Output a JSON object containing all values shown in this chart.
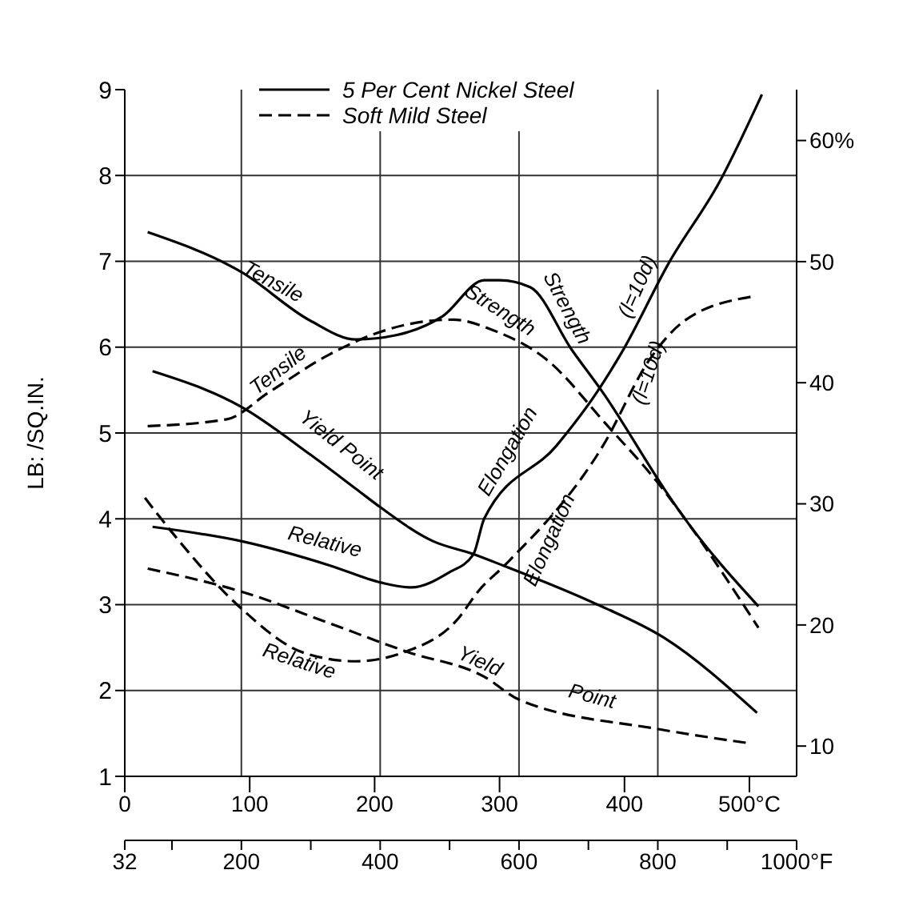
{
  "chart_data": {
    "type": "line",
    "ylabel": "LB: /SQ.IN.",
    "xlim": [
      32,
      1000
    ],
    "xticks": [
      32,
      {
        "value": 100,
        "label": null
      },
      200,
      {
        "value": 300,
        "label": null
      },
      400,
      {
        "value": 500,
        "label": null
      },
      600,
      {
        "value": 700,
        "label": null
      },
      800,
      {
        "value": 900,
        "label": null
      },
      {
        "value": 1000,
        "label": "1000°F"
      }
    ],
    "x2lim": [
      0,
      537.8
    ],
    "x2ticks": [
      0,
      100,
      200,
      300,
      400,
      {
        "value": 500,
        "label": "500°C"
      }
    ],
    "ylim": [
      1,
      9
    ],
    "yticks": [
      1,
      2,
      3,
      4,
      5,
      6,
      7,
      8,
      9
    ],
    "y2lim": [
      7.5,
      64.2
    ],
    "y2ticks": [
      10,
      20,
      30,
      40,
      50,
      {
        "value": 60,
        "label": "60%"
      }
    ],
    "grid": true,
    "legend": "top",
    "marker": "none",
    "series": [
      {
        "name": "5 Per Cent Nickel Steel",
        "color": "#000000",
        "line_style": "solid",
        "x": [
          65,
          201,
          299,
          365,
          423,
          490,
          550,
          572,
          616,
          676,
          721,
          810,
          832,
          945
        ],
        "values": [
          7.34,
          6.87,
          6.31,
          6.09,
          6.14,
          6.36,
          6.78,
          6.78,
          6.7,
          5.97,
          5.47,
          4.34,
          4.08,
          2.98
        ]
      },
      {
        "color": "#000000",
        "line_style": "solid",
        "x": [
          72,
          201,
          299,
          365,
          401,
          476,
          534,
          579,
          705,
          810,
          943
        ],
        "values": [
          5.72,
          5.3,
          4.75,
          4.35,
          4.13,
          3.74,
          3.59,
          3.45,
          3.03,
          2.61,
          1.74
        ]
      },
      {
        "color": "#000000",
        "line_style": "solid",
        "axis": "y2",
        "x": [
          72,
          201,
          328,
          401,
          445,
          498,
          534,
          550,
          654,
          712,
          750,
          816,
          890,
          950
        ],
        "values": [
          28.1,
          26.9,
          24.9,
          23.5,
          23.1,
          24.3,
          25.8,
          28.8,
          34.8,
          39.2,
          42.7,
          49.9,
          56.7,
          63.8
        ]
      },
      {
        "name": "Soft Mild Steel",
        "color": "#000000",
        "line_style": "dashed",
        "x": [
          65,
          179,
          239,
          328,
          401,
          476,
          505,
          565,
          639,
          728,
          801,
          832,
          945
        ],
        "values": [
          5.08,
          5.16,
          5.47,
          5.92,
          6.18,
          6.31,
          6.32,
          6.19,
          5.86,
          5.08,
          4.41,
          4.08,
          2.73
        ]
      },
      {
        "color": "#000000",
        "line_style": "dashed",
        "x": [
          65,
          201,
          328,
          439,
          550,
          601,
          801,
          928
        ],
        "values": [
          3.42,
          3.15,
          2.78,
          2.45,
          2.16,
          1.89,
          1.55,
          1.39
        ]
      },
      {
        "color": "#000000",
        "line_style": "dashed",
        "axis": "y2",
        "x": [
          61,
          105,
          201,
          290,
          365,
          432,
          512,
          543,
          579,
          721,
          788,
          838,
          934
        ],
        "values": [
          30.5,
          27.3,
          21.3,
          17.7,
          17.0,
          17.7,
          20.5,
          22.9,
          24.9,
          34.8,
          41.9,
          45.1,
          47.1
        ]
      }
    ],
    "annotations": [
      "Tensile",
      "Strength",
      "Yield Point",
      "Relative",
      "Elongation",
      "(l=10d)",
      "Tensile",
      "Strength",
      "Relative",
      "Yield",
      "Point",
      "Elongation",
      "(l=10d)"
    ]
  }
}
